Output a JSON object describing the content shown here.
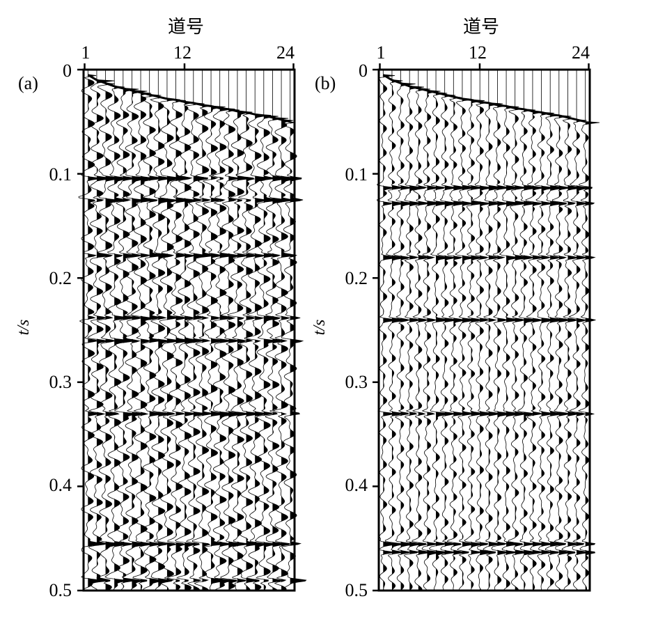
{
  "chart_data": [
    {
      "type": "seismic-wiggle",
      "panel_label": "(a)",
      "xlabel": "道号",
      "ylabel": "t/s",
      "x_ticks": [
        1,
        12,
        24
      ],
      "y_ticks": [
        "0",
        "0.1",
        "0.2",
        "0.3",
        "0.4",
        "0.5"
      ],
      "xlim": [
        1,
        24
      ],
      "ylim": [
        0,
        0.5
      ],
      "traces": 24,
      "first_break_s": [
        0.005,
        0.01,
        0.013,
        0.016,
        0.018,
        0.02,
        0.022,
        0.024,
        0.026,
        0.028,
        0.029,
        0.031,
        0.032,
        0.034,
        0.035,
        0.037,
        0.038,
        0.04,
        0.041,
        0.043,
        0.044,
        0.046,
        0.048,
        0.05
      ],
      "strong_events_s": [
        0.104,
        0.125,
        0.178,
        0.238,
        0.26,
        0.33,
        0.455,
        0.49
      ],
      "noise": "high"
    },
    {
      "type": "seismic-wiggle",
      "panel_label": "(b)",
      "xlabel": "道号",
      "ylabel": "t/s",
      "x_ticks": [
        1,
        12,
        24
      ],
      "y_ticks": [
        "0",
        "0.1",
        "0.2",
        "0.3",
        "0.4",
        "0.5"
      ],
      "xlim": [
        1,
        24
      ],
      "ylim": [
        0,
        0.5
      ],
      "traces": 24,
      "first_break_s": [
        0.005,
        0.01,
        0.013,
        0.016,
        0.018,
        0.02,
        0.022,
        0.024,
        0.026,
        0.028,
        0.029,
        0.031,
        0.032,
        0.034,
        0.035,
        0.037,
        0.038,
        0.04,
        0.041,
        0.043,
        0.044,
        0.046,
        0.048,
        0.05
      ],
      "strong_events_s": [
        0.113,
        0.128,
        0.18,
        0.24,
        0.33,
        0.455,
        0.463
      ],
      "noise": "low"
    }
  ]
}
